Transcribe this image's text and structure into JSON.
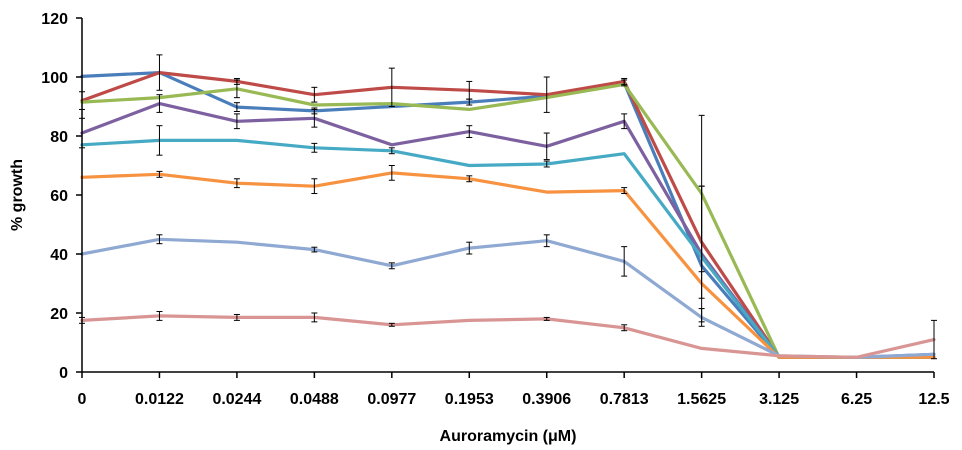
{
  "chart_data": {
    "type": "line",
    "xlabel": "Auroramycin (μM)",
    "ylabel": "% growth",
    "ylim": [
      0,
      120
    ],
    "yticks": [
      0,
      20,
      40,
      60,
      80,
      100,
      120
    ],
    "grid": false,
    "legend": "none",
    "categories": [
      "0",
      "0.0122",
      "0.0244",
      "0.0488",
      "0.0977",
      "0.1953",
      "0.3906",
      "0.7813",
      "1.5625",
      "3.125",
      "6.25",
      "12.5"
    ],
    "series": [
      {
        "color": "#4a7ebb",
        "values": [
          100.2,
          101.5,
          89.8,
          88.5,
          90.0,
          91.5,
          93.5,
          98.0,
          36.0,
          5.0,
          5.0,
          6.0
        ],
        "errors": [
          0,
          0,
          1.5,
          1,
          0,
          1,
          0,
          1,
          0,
          0,
          0,
          0
        ]
      },
      {
        "color": "#be4b48",
        "values": [
          92.0,
          101.5,
          98.5,
          94.0,
          96.5,
          95.5,
          94.0,
          98.5,
          44.0,
          5.0,
          5.0,
          5.0
        ],
        "errors": [
          3,
          6,
          1,
          2.5,
          6.5,
          3,
          6,
          1,
          19,
          0,
          0,
          0
        ]
      },
      {
        "color": "#98b954",
        "values": [
          91.5,
          93.0,
          96.0,
          90.5,
          91.0,
          89.0,
          93.0,
          97.5,
          60.5,
          5.0,
          5.0,
          5.0
        ],
        "errors": [
          0,
          0,
          3,
          0,
          0,
          0,
          0,
          0,
          26.5,
          0,
          0,
          0
        ]
      },
      {
        "color": "#7d60a0",
        "values": [
          81.0,
          91.0,
          85.0,
          86.0,
          77.0,
          81.5,
          76.5,
          85.0,
          40.0,
          5.0,
          5.0,
          5.0
        ],
        "errors": [
          5,
          3,
          2.5,
          3,
          0,
          2,
          4.5,
          2.5,
          23,
          0,
          0,
          0
        ]
      },
      {
        "color": "#46aac5",
        "values": [
          77.0,
          78.5,
          78.5,
          76.0,
          75.0,
          70.0,
          70.5,
          74.0,
          39.0,
          5.0,
          5.0,
          5.0
        ],
        "errors": [
          0,
          5,
          0,
          1.5,
          1,
          0,
          1,
          0,
          0,
          0,
          0,
          0
        ]
      },
      {
        "color": "#f69240",
        "values": [
          66.0,
          67.0,
          64.0,
          63.0,
          67.5,
          65.5,
          61.0,
          61.5,
          30.0,
          5.0,
          5.0,
          5.0
        ],
        "errors": [
          0,
          1,
          1.5,
          2.5,
          2.5,
          1,
          0,
          1,
          0,
          0,
          0,
          0
        ]
      },
      {
        "color": "#8fa9d3",
        "values": [
          40.0,
          45.0,
          44.0,
          41.5,
          36.0,
          42.0,
          44.5,
          37.5,
          18.5,
          5.5,
          5.0,
          6.0
        ],
        "errors": [
          0,
          1.5,
          0,
          0.8,
          1,
          2,
          2,
          5,
          3,
          0,
          0,
          0
        ]
      },
      {
        "color": "#d89594",
        "values": [
          17.5,
          19.0,
          18.5,
          18.5,
          16.0,
          17.5,
          18.0,
          15.0,
          8.0,
          5.5,
          5.0,
          11.0
        ],
        "errors": [
          1,
          1.5,
          1,
          1.5,
          0.5,
          0,
          0.5,
          1,
          0,
          0,
          0,
          6.5
        ]
      }
    ]
  }
}
